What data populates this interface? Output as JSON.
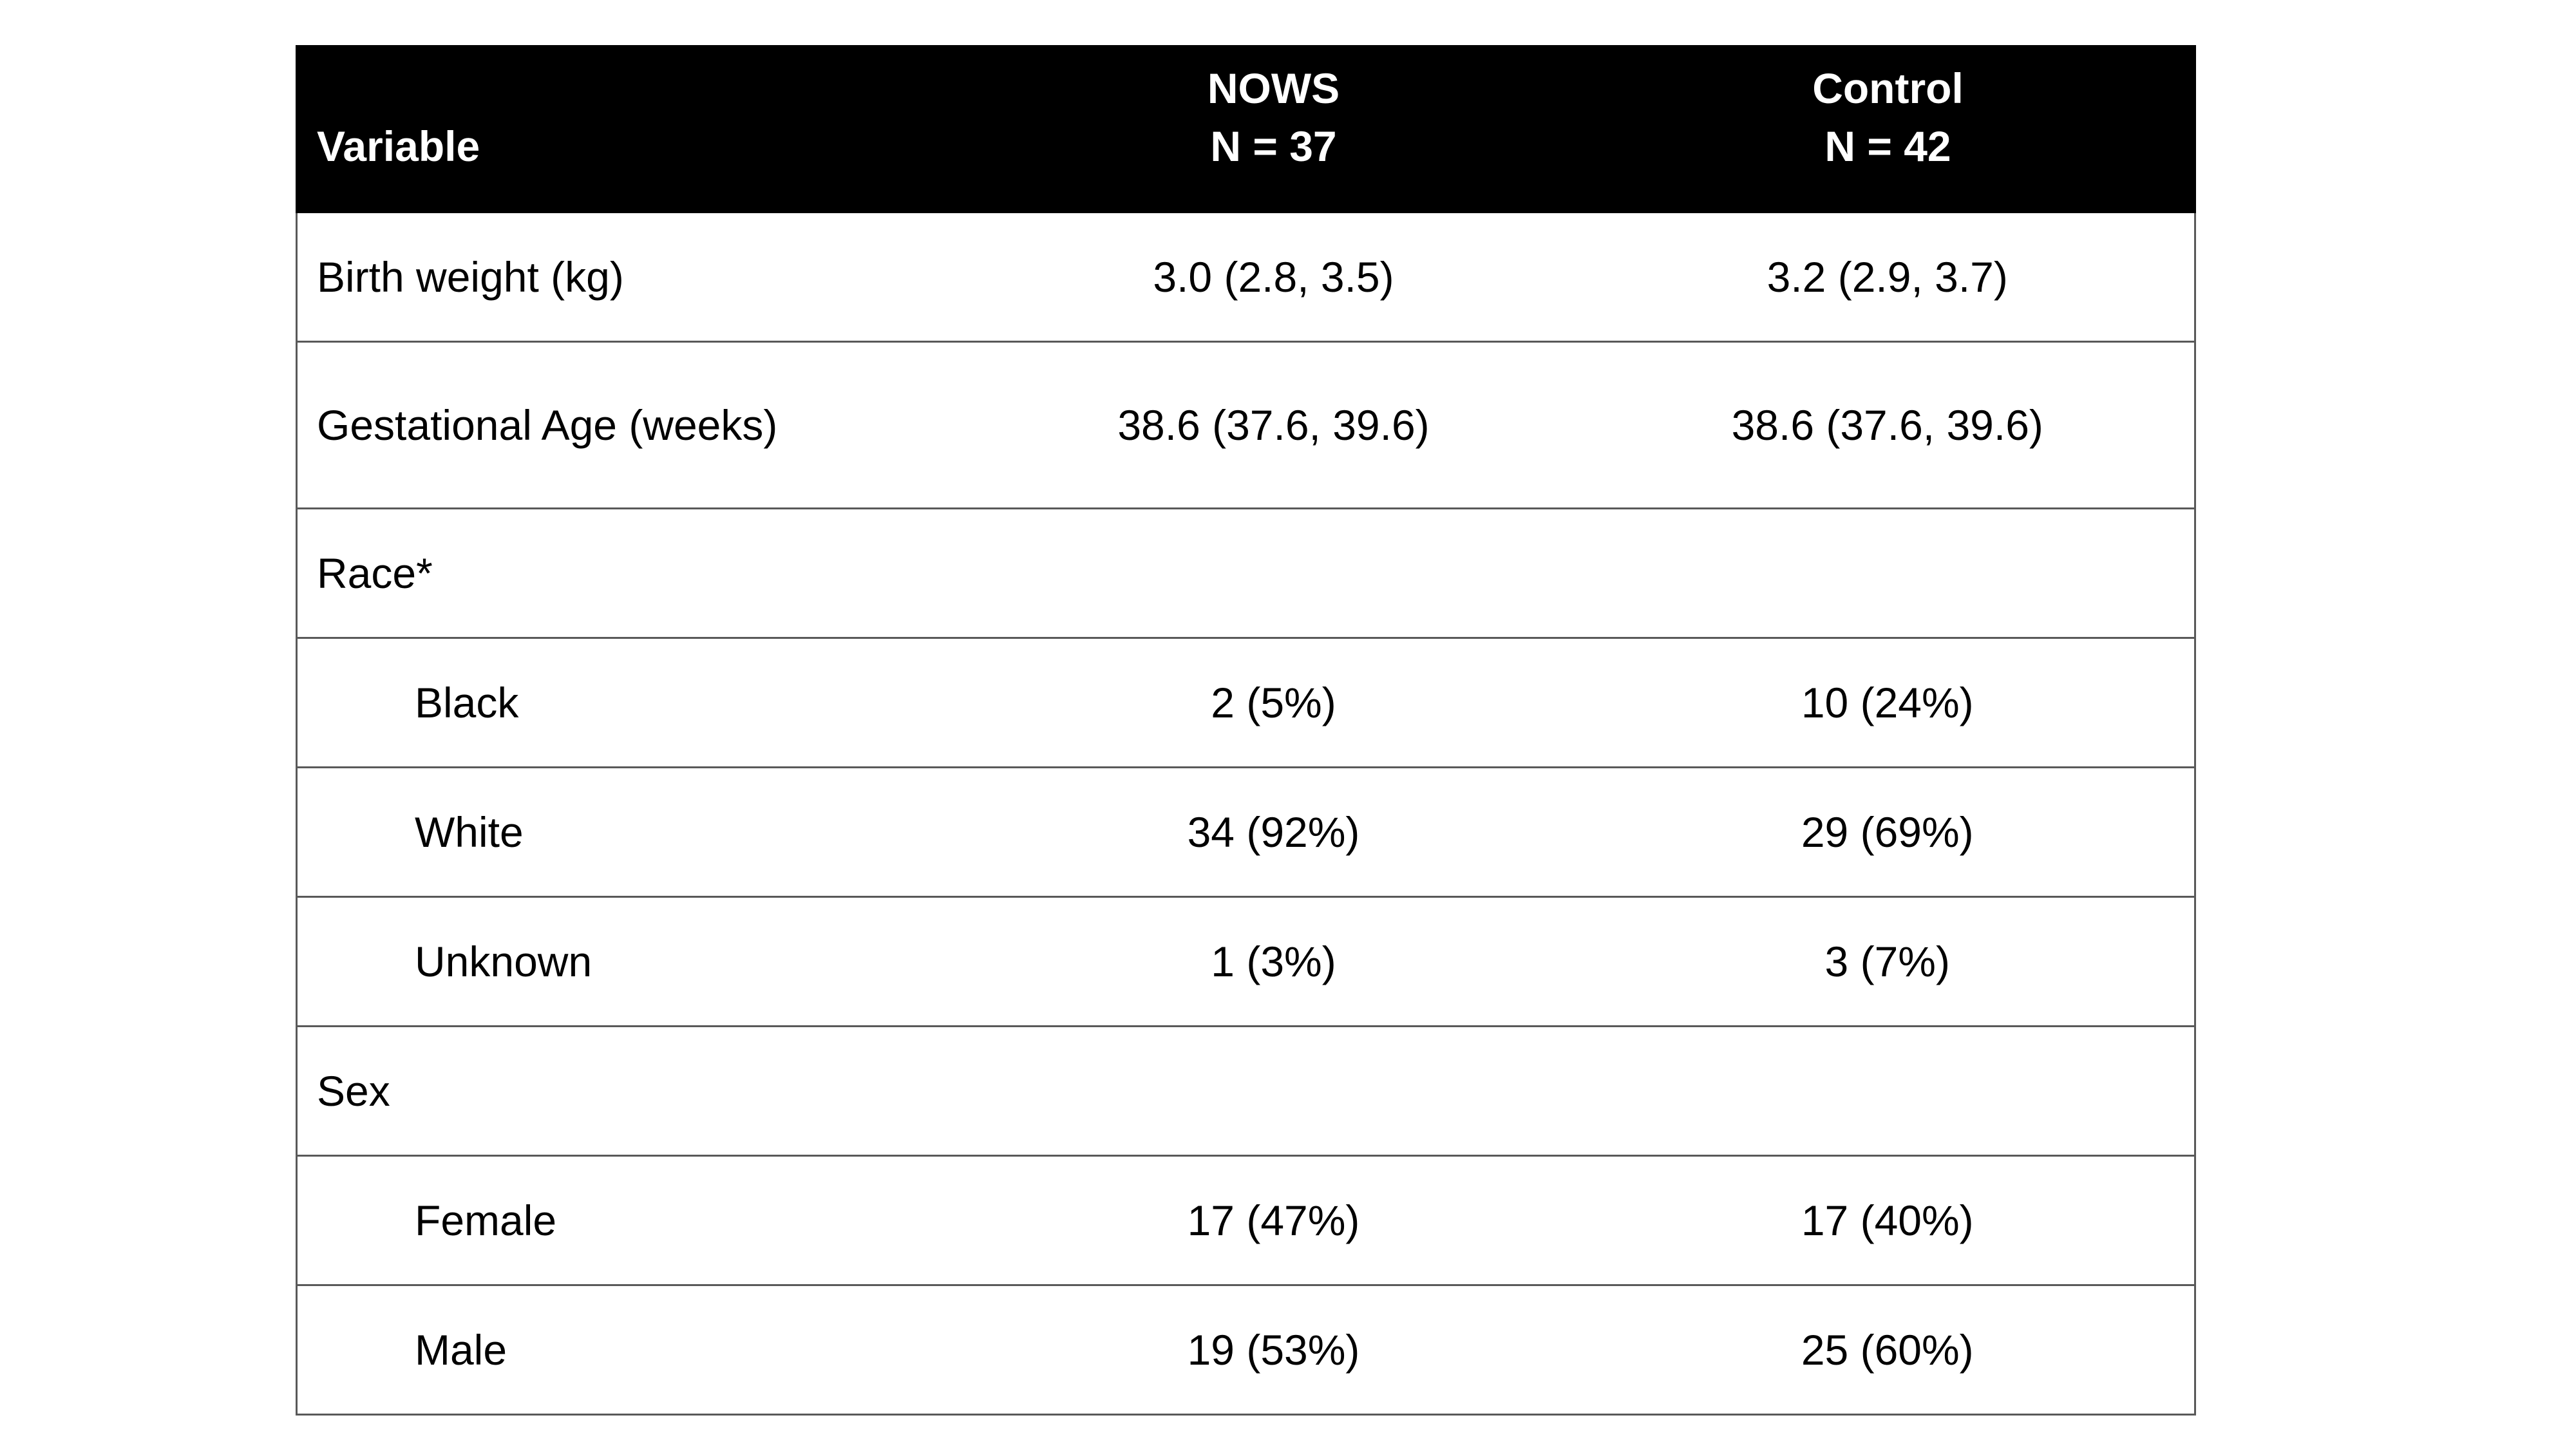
{
  "table": {
    "header": {
      "variable": "Variable",
      "groups": [
        {
          "name": "NOWS",
          "n": "N = 37"
        },
        {
          "name": "Control",
          "n": "N = 42"
        }
      ]
    },
    "rows": [
      {
        "label": "Birth weight (kg)",
        "indent": false,
        "nows": "3.0 (2.8, 3.5)",
        "control": "3.2 (2.9, 3.7)"
      },
      {
        "label": "Gestational Age (weeks)",
        "indent": false,
        "nows": "38.6 (37.6, 39.6)",
        "control": "38.6 (37.6, 39.6)"
      },
      {
        "label": "Race*",
        "indent": false,
        "nows": "",
        "control": ""
      },
      {
        "label": "Black",
        "indent": true,
        "nows": "2 (5%)",
        "control": "10 (24%)"
      },
      {
        "label": "White",
        "indent": true,
        "nows": "34 (92%)",
        "control": "29 (69%)"
      },
      {
        "label": "Unknown",
        "indent": true,
        "nows": "1 (3%)",
        "control": "3 (7%)"
      },
      {
        "label": "Sex",
        "indent": false,
        "nows": "",
        "control": ""
      },
      {
        "label": "Female",
        "indent": true,
        "nows": "17 (47%)",
        "control": "17 (40%)"
      },
      {
        "label": "Male",
        "indent": true,
        "nows": "19 (53%)",
        "control": "25 (60%)"
      }
    ]
  },
  "colors": {
    "header_bg": "#000000",
    "header_text": "#ffffff",
    "grid_line": "#595959"
  }
}
